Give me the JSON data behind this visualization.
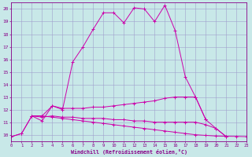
{
  "xlabel": "Windchill (Refroidissement éolien,°C)",
  "background_color": "#c8e8e8",
  "grid_color": "#a0a0cc",
  "line_color": "#cc00aa",
  "xlim": [
    0,
    23
  ],
  "ylim": [
    9.5,
    20.5
  ],
  "xticks": [
    0,
    1,
    2,
    3,
    4,
    5,
    6,
    7,
    8,
    9,
    10,
    11,
    12,
    13,
    14,
    15,
    16,
    17,
    18,
    19,
    20,
    21,
    22,
    23
  ],
  "yticks": [
    10,
    11,
    12,
    13,
    14,
    15,
    16,
    17,
    18,
    19,
    20
  ],
  "curves": [
    {
      "x": [
        0,
        1,
        2,
        3,
        4,
        5,
        6,
        7,
        8,
        9,
        10,
        11,
        12,
        13,
        14,
        15,
        16,
        17,
        18,
        19,
        20,
        21,
        22,
        23
      ],
      "y": [
        9.85,
        10.1,
        11.5,
        11.1,
        12.3,
        12.0,
        15.8,
        17.0,
        18.4,
        19.7,
        19.7,
        18.9,
        20.1,
        20.0,
        19.0,
        20.3,
        18.3,
        14.6,
        13.0,
        11.2,
        null,
        null,
        null,
        null
      ]
    },
    {
      "x": [
        2,
        3,
        4,
        5,
        6,
        7,
        8,
        9,
        10,
        11,
        12,
        13,
        14,
        15,
        16,
        17,
        18,
        19,
        20,
        21,
        22,
        23
      ],
      "y": [
        11.5,
        11.5,
        12.3,
        12.1,
        12.1,
        12.1,
        12.2,
        12.2,
        12.3,
        12.4,
        12.5,
        12.6,
        12.7,
        12.9,
        13.0,
        13.0,
        13.0,
        11.2,
        10.5,
        9.85,
        null,
        null
      ]
    },
    {
      "x": [
        2,
        3,
        4,
        5,
        6,
        7,
        8,
        9,
        10,
        11,
        12,
        13,
        14,
        15,
        16,
        17,
        18,
        19,
        20,
        21,
        22,
        23
      ],
      "y": [
        11.5,
        11.4,
        11.5,
        11.4,
        11.4,
        11.3,
        11.3,
        11.3,
        11.2,
        11.2,
        11.1,
        11.1,
        11.0,
        11.0,
        11.0,
        11.0,
        11.0,
        10.8,
        10.5,
        9.85,
        null,
        null
      ]
    },
    {
      "x": [
        0,
        1,
        2,
        3,
        4,
        5,
        6,
        7,
        8,
        9,
        10,
        11,
        12,
        13,
        14,
        15,
        16,
        17,
        18,
        19,
        20,
        21,
        22,
        23
      ],
      "y": [
        9.85,
        10.1,
        11.5,
        11.5,
        11.4,
        11.3,
        11.2,
        11.1,
        11.0,
        10.9,
        10.8,
        10.7,
        10.6,
        10.5,
        10.4,
        10.3,
        10.2,
        10.1,
        10.0,
        9.95,
        9.9,
        9.88,
        9.87,
        9.85
      ]
    }
  ]
}
